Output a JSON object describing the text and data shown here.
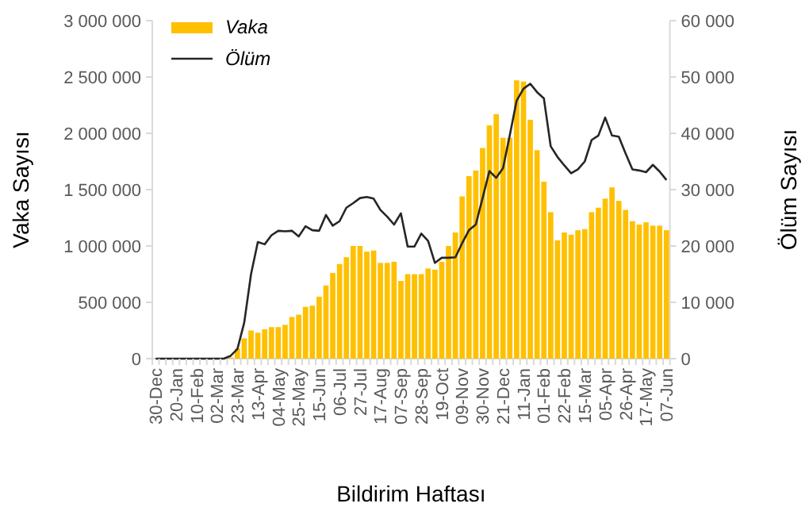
{
  "chart_data": {
    "type": "bar",
    "xlabel": "Bildirim Haftası",
    "ylabel": "Vaka Sayısı",
    "y2label": "Ölüm Sayısı",
    "categories": [
      "30-Dec",
      null,
      null,
      "20-Jan",
      null,
      null,
      "10-Feb",
      null,
      null,
      "02-Mar",
      null,
      null,
      "23-Mar",
      null,
      null,
      "13-Apr",
      null,
      null,
      "04-May",
      null,
      null,
      "25-May",
      null,
      null,
      "15-Jun",
      null,
      null,
      "06-Jul",
      null,
      null,
      "27-Jul",
      null,
      null,
      "17-Aug",
      null,
      null,
      "07-Sep",
      null,
      null,
      "28-Sep",
      null,
      null,
      "19-Oct",
      null,
      null,
      "09-Nov",
      null,
      null,
      "30-Nov",
      null,
      null,
      "21-Dec",
      null,
      null,
      "11-Jan",
      null,
      null,
      "01-Feb",
      null,
      null,
      "22-Feb",
      null,
      null,
      "15-Mar",
      null,
      null,
      "05-Apr",
      null,
      null,
      "26-Apr",
      null,
      null,
      "17-May",
      null,
      null,
      "07-Jun"
    ],
    "series": [
      {
        "name": "Vaka",
        "color": "#ffc000",
        "values": [
          0,
          0,
          0,
          0,
          0,
          0,
          0,
          0,
          0,
          0,
          0,
          10000,
          90000,
          180000,
          250000,
          230000,
          260000,
          280000,
          280000,
          300000,
          370000,
          390000,
          460000,
          470000,
          550000,
          650000,
          760000,
          840000,
          900000,
          1000000,
          1000000,
          950000,
          960000,
          850000,
          850000,
          860000,
          690000,
          750000,
          750000,
          750000,
          800000,
          790000,
          860000,
          1000000,
          1120000,
          1440000,
          1620000,
          1670000,
          1870000,
          2070000,
          2170000,
          1960000,
          1960000,
          2470000,
          2460000,
          2120000,
          1850000,
          1570000,
          1300000,
          1050000,
          1120000,
          1100000,
          1140000,
          1150000,
          1300000,
          1340000,
          1420000,
          1520000,
          1400000,
          1320000,
          1220000,
          1190000,
          1210000,
          1180000,
          1180000,
          1140000
        ]
      },
      {
        "name": "Ölüm",
        "type": "line",
        "axis": "y2",
        "color": "#262626",
        "values": [
          0,
          0,
          0,
          0,
          0,
          0,
          0,
          0,
          0,
          0,
          0,
          500,
          1700,
          6400,
          15000,
          20700,
          20300,
          21900,
          22700,
          22600,
          22700,
          21700,
          23500,
          22800,
          22700,
          25500,
          23600,
          24400,
          26800,
          27600,
          28500,
          28700,
          28400,
          26400,
          25200,
          23800,
          25800,
          19900,
          19900,
          22200,
          20900,
          17000,
          17900,
          17900,
          18000,
          20500,
          22800,
          23800,
          28500,
          33300,
          32100,
          33800,
          39700,
          45800,
          47900,
          48800,
          47300,
          46200,
          37700,
          35800,
          34300,
          32900,
          33600,
          35000,
          38800,
          39600,
          42800,
          39600,
          39400,
          36400,
          33600,
          33400,
          33100,
          34400,
          33200,
          31700
        ]
      }
    ],
    "ylim": [
      0,
      3000000
    ],
    "yticks": [
      {
        "value": 0,
        "label": "0"
      },
      {
        "value": 500000,
        "label": "500 000"
      },
      {
        "value": 1000000,
        "label": "1 000 000"
      },
      {
        "value": 1500000,
        "label": "1 500 000"
      },
      {
        "value": 2000000,
        "label": "2 000 000"
      },
      {
        "value": 2500000,
        "label": "2 500 000"
      },
      {
        "value": 3000000,
        "label": "3 000 000"
      }
    ],
    "y2lim": [
      0,
      60000
    ],
    "y2ticks": [
      {
        "value": 0,
        "label": "0"
      },
      {
        "value": 10000,
        "label": "10 000"
      },
      {
        "value": 20000,
        "label": "20 000"
      },
      {
        "value": 30000,
        "label": "30 000"
      },
      {
        "value": 40000,
        "label": "40 000"
      },
      {
        "value": 50000,
        "label": "50 000"
      },
      {
        "value": 60000,
        "label": "60 000"
      }
    ],
    "legend": "top left",
    "grid": false
  }
}
